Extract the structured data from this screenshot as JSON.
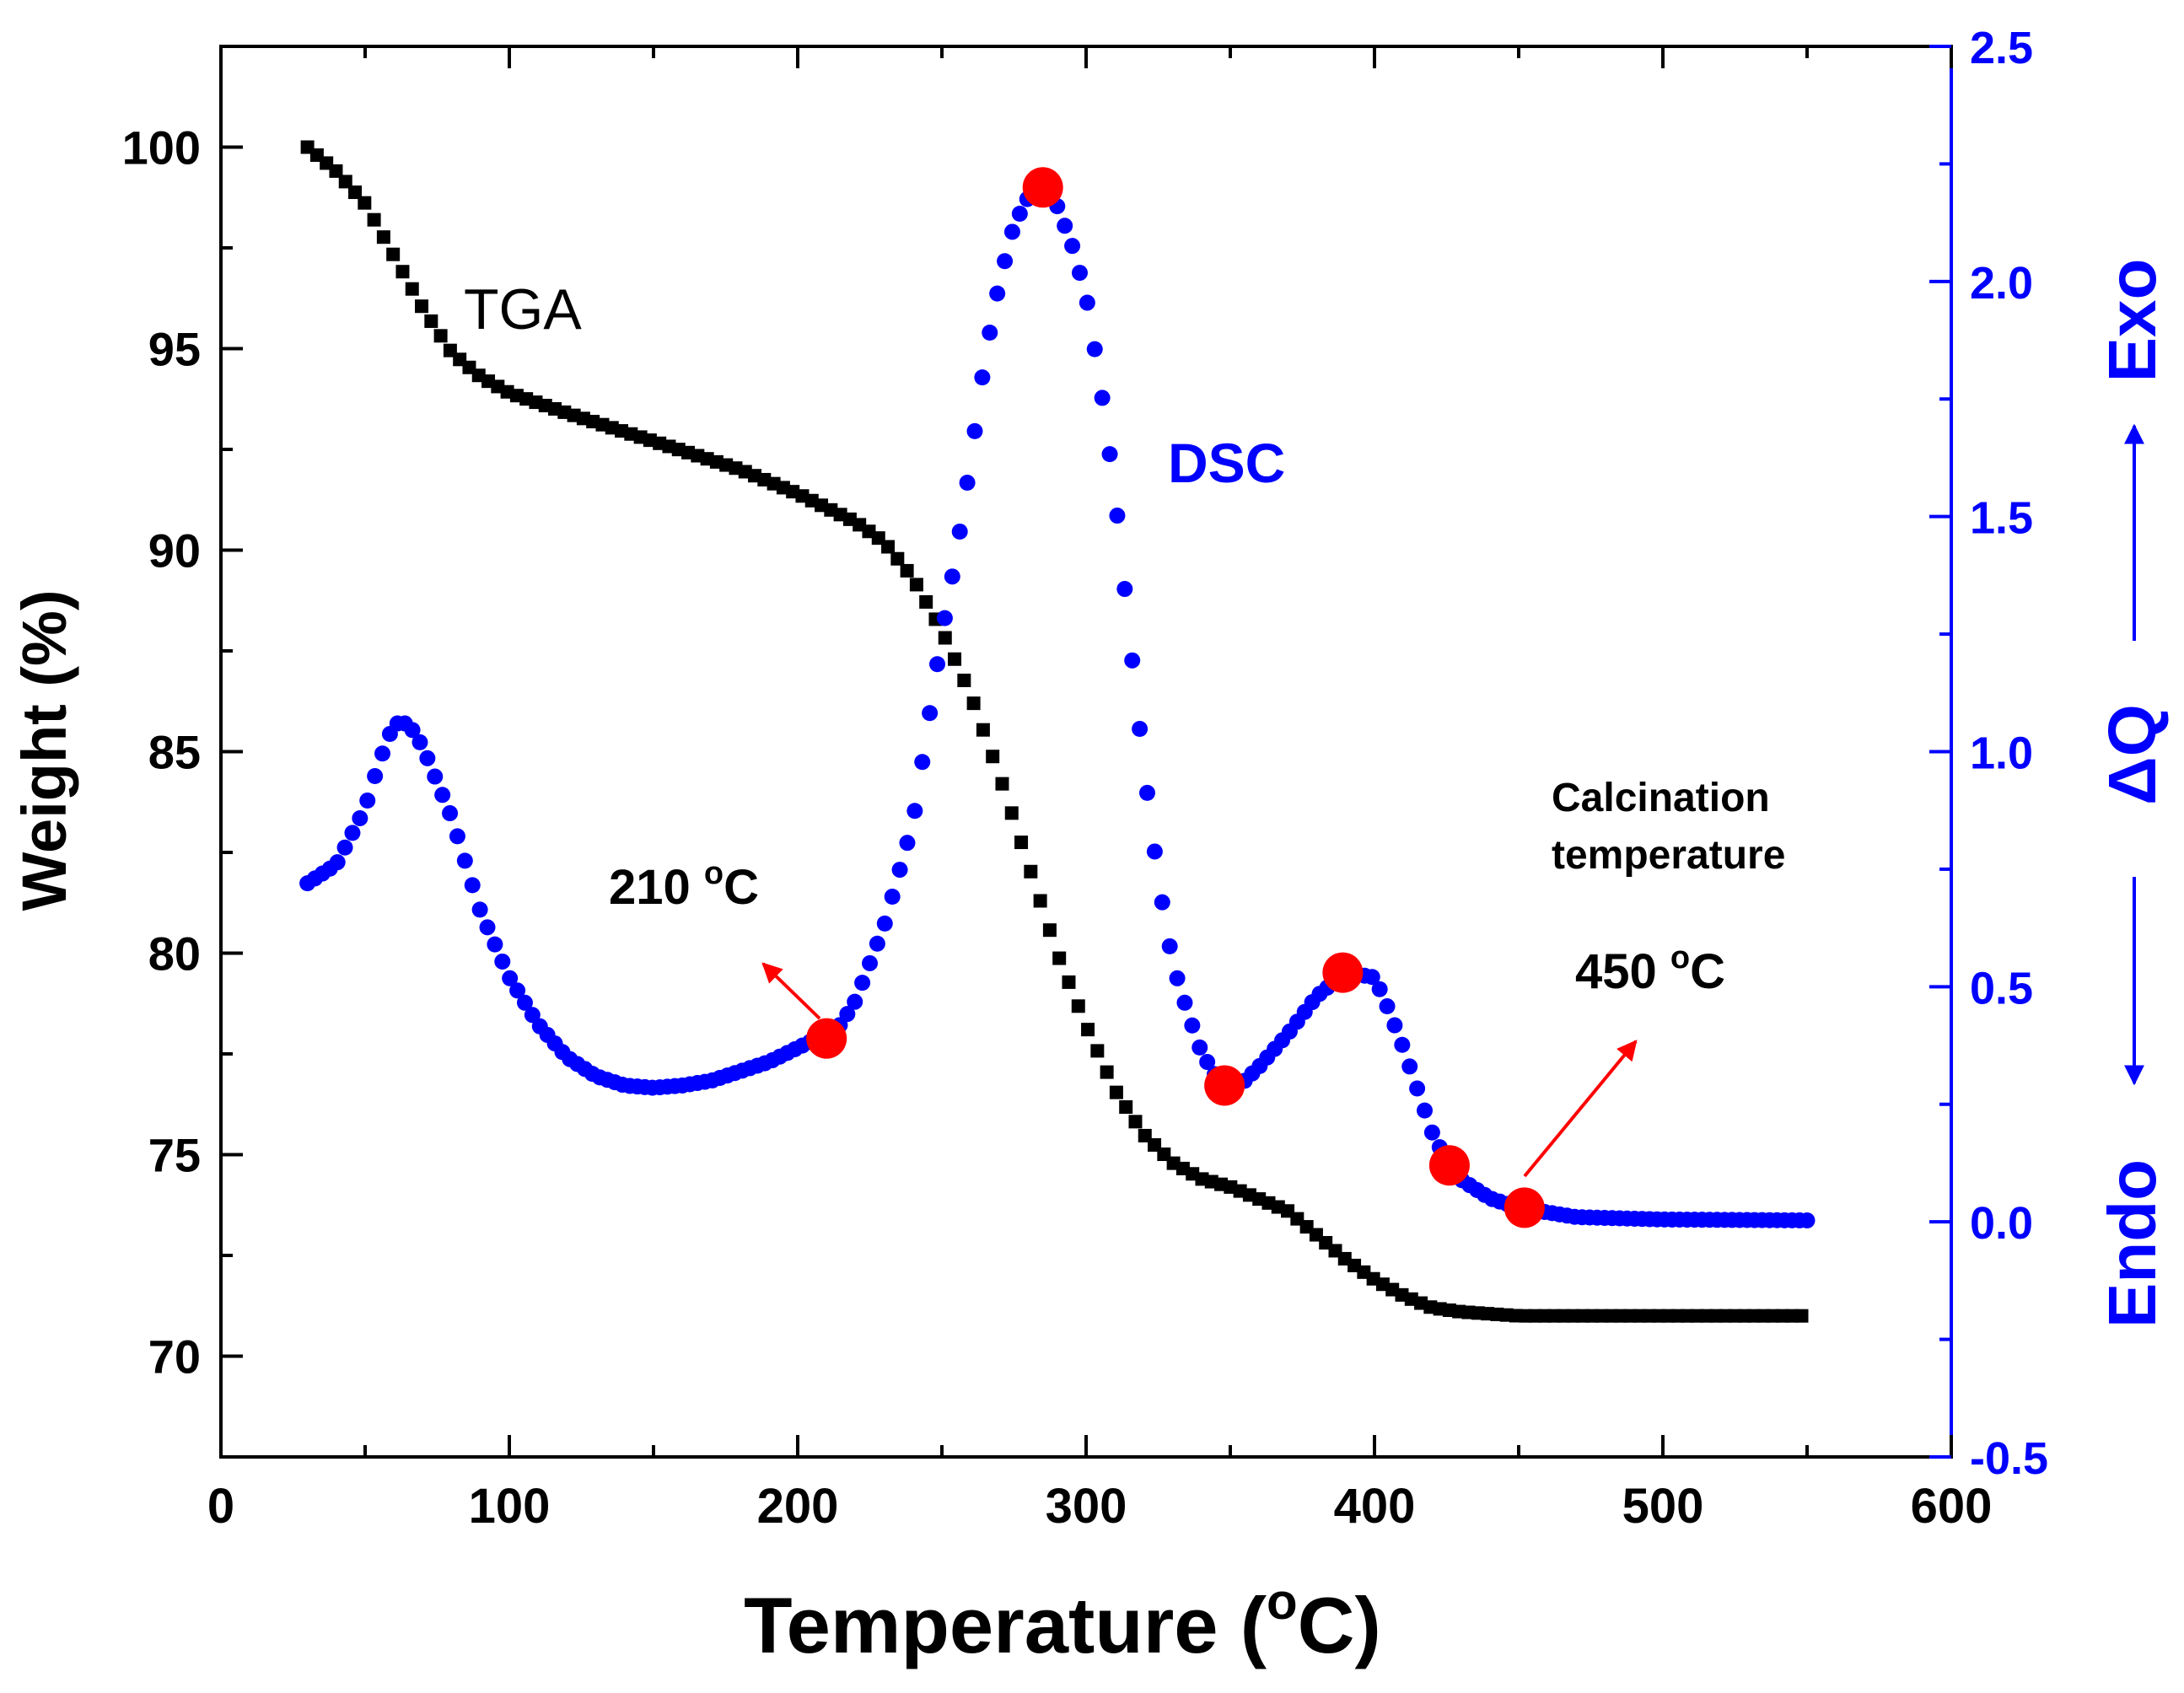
{
  "chart_data": {
    "type": "scatter",
    "title": "",
    "xlabel_main": "Temperature (",
    "xlabel_sup": "o",
    "xlabel_tail": "C)",
    "ylabel_left": "Weight (%)",
    "ylabel_right": {
      "endo": "Endo",
      "dq": "ΔQ",
      "exo": "Exo"
    },
    "xlim": [
      0,
      600
    ],
    "ylim_left": [
      67.5,
      102.5
    ],
    "ylim_right": [
      -0.5,
      2.5
    ],
    "x_ticks": [
      "0",
      "100",
      "200",
      "300",
      "400",
      "500",
      "600"
    ],
    "y_left_ticks": [
      "70",
      "75",
      "80",
      "85",
      "90",
      "95",
      "100"
    ],
    "y_right_ticks": [
      "-0.5",
      "0.0",
      "0.5",
      "1.0",
      "1.5",
      "2.0",
      "2.5"
    ],
    "grid": false,
    "series": [
      {
        "name": "TGA",
        "axis": "left",
        "color": "#000000",
        "marker": "square",
        "points": [
          [
            30,
            100.0
          ],
          [
            40,
            99.4
          ],
          [
            50,
            98.6
          ],
          [
            60,
            97.3
          ],
          [
            70,
            96.0
          ],
          [
            80,
            94.9
          ],
          [
            90,
            94.3
          ],
          [
            100,
            93.9
          ],
          [
            120,
            93.4
          ],
          [
            150,
            92.7
          ],
          [
            180,
            92.0
          ],
          [
            200,
            91.4
          ],
          [
            220,
            90.7
          ],
          [
            230,
            90.2
          ],
          [
            240,
            89.3
          ],
          [
            250,
            88.0
          ],
          [
            260,
            86.4
          ],
          [
            270,
            84.4
          ],
          [
            280,
            82.2
          ],
          [
            290,
            80.0
          ],
          [
            300,
            78.2
          ],
          [
            310,
            76.6
          ],
          [
            320,
            75.5
          ],
          [
            330,
            74.8
          ],
          [
            340,
            74.4
          ],
          [
            350,
            74.2
          ],
          [
            360,
            73.9
          ],
          [
            370,
            73.6
          ],
          [
            380,
            73.0
          ],
          [
            390,
            72.4
          ],
          [
            400,
            71.9
          ],
          [
            410,
            71.5
          ],
          [
            420,
            71.2
          ],
          [
            430,
            71.1
          ],
          [
            450,
            71.0
          ],
          [
            500,
            71.0
          ],
          [
            550,
            71.0
          ]
        ]
      },
      {
        "name": "DSC",
        "axis": "right",
        "color": "#0000ff",
        "marker": "circle",
        "points": [
          [
            30,
            0.72
          ],
          [
            40,
            0.76
          ],
          [
            50,
            0.88
          ],
          [
            55,
            0.98
          ],
          [
            60,
            1.06
          ],
          [
            65,
            1.06
          ],
          [
            70,
            1.01
          ],
          [
            80,
            0.86
          ],
          [
            90,
            0.66
          ],
          [
            100,
            0.52
          ],
          [
            110,
            0.42
          ],
          [
            120,
            0.35
          ],
          [
            130,
            0.31
          ],
          [
            140,
            0.29
          ],
          [
            150,
            0.285
          ],
          [
            160,
            0.29
          ],
          [
            170,
            0.3
          ],
          [
            180,
            0.32
          ],
          [
            190,
            0.34
          ],
          [
            200,
            0.37
          ],
          [
            210,
            0.4
          ],
          [
            215,
            0.42
          ],
          [
            220,
            0.47
          ],
          [
            230,
            0.63
          ],
          [
            240,
            0.85
          ],
          [
            250,
            1.25
          ],
          [
            255,
            1.42
          ],
          [
            260,
            1.62
          ],
          [
            265,
            1.84
          ],
          [
            270,
            2.0
          ],
          [
            275,
            2.12
          ],
          [
            280,
            2.18
          ],
          [
            285,
            2.2
          ],
          [
            290,
            2.16
          ],
          [
            295,
            2.08
          ],
          [
            300,
            1.97
          ],
          [
            305,
            1.78
          ],
          [
            310,
            1.55
          ],
          [
            315,
            1.25
          ],
          [
            320,
            0.97
          ],
          [
            325,
            0.73
          ],
          [
            330,
            0.55
          ],
          [
            335,
            0.45
          ],
          [
            340,
            0.36
          ],
          [
            345,
            0.31
          ],
          [
            350,
            0.29
          ],
          [
            355,
            0.3
          ],
          [
            360,
            0.33
          ],
          [
            370,
            0.4
          ],
          [
            380,
            0.48
          ],
          [
            390,
            0.53
          ],
          [
            400,
            0.52
          ],
          [
            405,
            0.45
          ],
          [
            410,
            0.37
          ],
          [
            415,
            0.28
          ],
          [
            420,
            0.19
          ],
          [
            425,
            0.13
          ],
          [
            430,
            0.09
          ],
          [
            440,
            0.05
          ],
          [
            450,
            0.03
          ],
          [
            460,
            0.02
          ],
          [
            470,
            0.01
          ],
          [
            500,
            0.005
          ],
          [
            550,
            0.003
          ]
        ]
      }
    ],
    "highlighted_points": [
      [
        210,
        0.39
      ],
      [
        285,
        2.2
      ],
      [
        348,
        0.29
      ],
      [
        389,
        0.53
      ],
      [
        426,
        0.12
      ],
      [
        452,
        0.03
      ]
    ],
    "annotations": {
      "tga_label": "TGA",
      "dsc_label": "DSC",
      "t210_main": "210 ",
      "t210_sup": "o",
      "t210_unit": "C",
      "calc_line1": "Calcination",
      "calc_line2": "temperature",
      "t450_main": "450 ",
      "t450_sup": "o",
      "t450_unit": "C"
    },
    "colors": {
      "tga": "#000000",
      "dsc": "#0000ff",
      "highlight": "#ff0000",
      "arrow": "#ff0000",
      "right_axis": "#0000ff"
    }
  }
}
